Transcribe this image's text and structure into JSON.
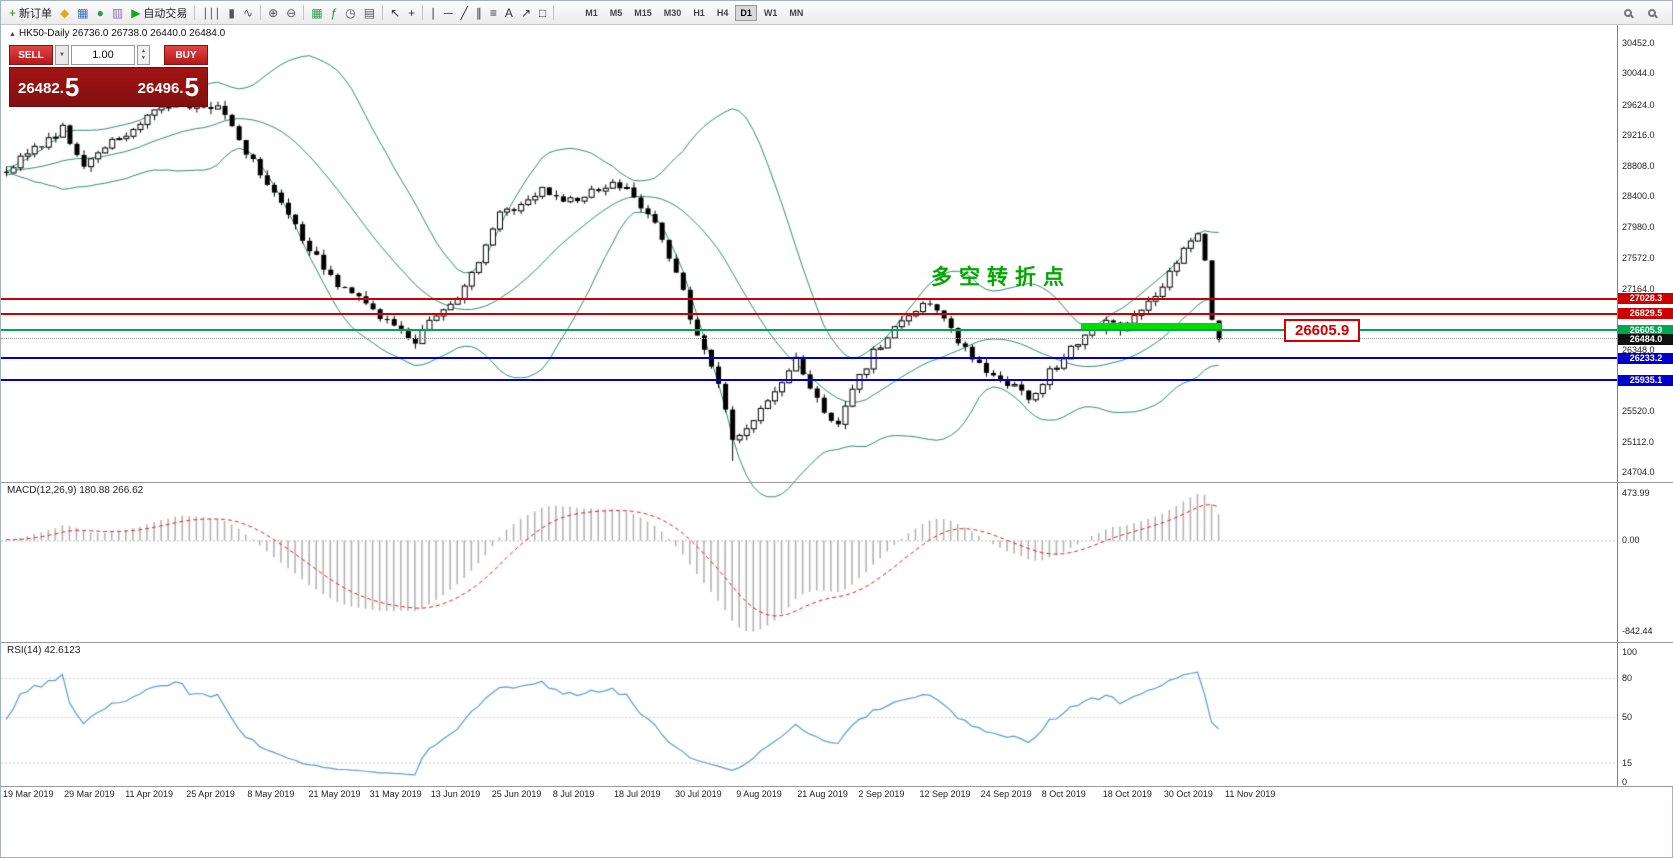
{
  "colors": {
    "bollinger": "#2e8b74",
    "macd_signal": "#dd2222",
    "macd_histogram": "#b4b4b4",
    "rsi_line": "#5b9bd5",
    "annotation_green": "#00a800",
    "callout_red": "#d40000",
    "highlight_green": "#00dd00",
    "level_red": "#cc0000",
    "level_green": "#00a651",
    "level_blue": "#0000cc"
  },
  "toolbar": {
    "items": [
      {
        "name": "new-order-button",
        "icon": "+",
        "icon_color": "#1a9c1a",
        "label": "新订单"
      },
      {
        "name": "market-watch-button",
        "icon": "◆",
        "icon_color": "#e6a817"
      },
      {
        "name": "data-window-button",
        "icon": "▦",
        "icon_color": "#3a6fc4"
      },
      {
        "name": "navigator-button",
        "icon": "●",
        "icon_color": "#2e9c4f"
      },
      {
        "name": "terminal-button",
        "icon": "▥",
        "icon_color": "#8a6fc0"
      },
      {
        "name": "auto-trading-button",
        "icon": "▶",
        "icon_color": "#18a818",
        "label": "自动交易"
      },
      {
        "sep": true
      },
      {
        "name": "bar-chart-button",
        "icon": "∣∣∣",
        "icon_color": "#555555"
      },
      {
        "name": "candlestick-chart-button",
        "icon": "▮",
        "icon_color": "#555555"
      },
      {
        "name": "line-chart-button",
        "icon": "∿",
        "icon_color": "#555555"
      },
      {
        "sep": true
      },
      {
        "name": "zoom-in-button",
        "icon": "⊕",
        "icon_color": "#555555"
      },
      {
        "name": "zoom-out-button",
        "icon": "⊖",
        "icon_color": "#555555"
      },
      {
        "sep": true
      },
      {
        "name": "tile-windows-button",
        "icon": "▦",
        "icon_color": "#2e9c4f"
      },
      {
        "name": "indicators-button",
        "icon": "ƒ",
        "icon_color": "#1a9c1a"
      },
      {
        "name": "periods-button",
        "icon": "◷",
        "icon_color": "#555555"
      },
      {
        "name": "templates-button",
        "icon": "▤",
        "icon_color": "#555555"
      },
      {
        "sep": true
      },
      {
        "name": "cursor-button",
        "icon": "↖",
        "icon_color": "#333333"
      },
      {
        "name": "crosshair-button",
        "icon": "+",
        "icon_color": "#333333"
      },
      {
        "sep": true
      },
      {
        "name": "vertical-line-button",
        "icon": "∣",
        "icon_color": "#333333"
      },
      {
        "name": "horizontal-line-button",
        "icon": "─",
        "icon_color": "#333333"
      },
      {
        "name": "trendline-button",
        "icon": "╱",
        "icon_color": "#333333"
      },
      {
        "name": "channel-button",
        "icon": "∥",
        "icon_color": "#333333"
      },
      {
        "name": "fibonacci-button",
        "icon": "≡",
        "icon_color": "#333333"
      },
      {
        "name": "text-button",
        "icon": "A",
        "icon_color": "#333333"
      },
      {
        "name": "arrow-button",
        "icon": "↗",
        "icon_color": "#333333"
      },
      {
        "name": "shapes-button",
        "icon": "□",
        "icon_color": "#333333"
      },
      {
        "sep": true
      }
    ],
    "right_items": [
      {
        "name": "search-button"
      },
      {
        "name": "help-search-button"
      }
    ],
    "timeframes": [
      "M1",
      "M5",
      "M15",
      "M30",
      "H1",
      "H4",
      "D1",
      "W1",
      "MN"
    ],
    "active_timeframe": "D1"
  },
  "chart": {
    "title_marker": "▲",
    "title": "HK50-Daily 26736.0 26738.0 26440.0 26484.0",
    "order_panel": {
      "sell_label": "SELL",
      "buy_label": "BUY",
      "volume": "1.00",
      "sell_price": "26482.5",
      "buy_price": "26496.5",
      "sell_main": "26482.",
      "sell_big": "5",
      "buy_main": "26496.",
      "buy_big": "5"
    },
    "annotation": "多空转折点",
    "callout_price": "26605.9",
    "axis_labels": [
      "30452.0",
      "30044.0",
      "29624.0",
      "29216.0",
      "28808.0",
      "28400.0",
      "27980.0",
      "27572.0",
      "27164.0",
      "26348.0",
      "25520.0",
      "25112.0",
      "24704.0"
    ],
    "price_tags": [
      {
        "text": "27028.3",
        "price": 27028.3,
        "color": "#cc0000"
      },
      {
        "text": "26829.5",
        "price": 26829.5,
        "color": "#cc0000"
      },
      {
        "text": "26605.9",
        "price": 26605.9,
        "color": "#00a651"
      },
      {
        "text": "26484.0",
        "price": 26484.0,
        "color": "#111111"
      },
      {
        "text": "26233.2",
        "price": 26233.2,
        "color": "#0000cc"
      },
      {
        "text": "25935.1",
        "price": 25935.1,
        "color": "#0000cc"
      }
    ],
    "levels": [
      {
        "name": "resistance-line-27028",
        "price": 27028.3,
        "color": "#cc0000",
        "style": "solid"
      },
      {
        "name": "resistance-line-26829",
        "price": 26829.5,
        "color": "#cc0000",
        "style": "solid"
      },
      {
        "name": "support-line-26605",
        "price": 26605.9,
        "color": "#00a651",
        "style": "solid"
      },
      {
        "name": "current-price-line",
        "price": 26484.0,
        "color": "#999999",
        "style": "dotted"
      },
      {
        "name": "support-line-26233",
        "price": 26233.2,
        "color": "#0000cc",
        "style": "solid"
      },
      {
        "name": "support-line-25935",
        "price": 25935.1,
        "color": "#0000cc",
        "style": "solid"
      }
    ],
    "highlight": {
      "from_index": 152.5,
      "to_index": 172.3,
      "price": 26605.9
    }
  },
  "macd": {
    "label": "MACD(12,26,9) 180.88 266.62",
    "axis": [
      "473.99",
      "0.00",
      "-842.44"
    ]
  },
  "rsi": {
    "label": "RSI(14) 42.6123",
    "axis": [
      "100",
      "80",
      "50",
      "15",
      "0"
    ],
    "levels": [
      80,
      50,
      15
    ]
  },
  "dates": [
    "19 Mar 2019",
    "29 Mar 2019",
    "11 Apr 2019",
    "25 Apr 2019",
    "8 May 2019",
    "21 May 2019",
    "31 May 2019",
    "13 Jun 2019",
    "25 Jun 2019",
    "8 Jul 2019",
    "18 Jul 2019",
    "30 Jul 2019",
    "9 Aug 2019",
    "21 Aug 2019",
    "2 Sep 2019",
    "12 Sep 2019",
    "24 Sep 2019",
    "8 Oct 2019",
    "18 Oct 2019",
    "30 Oct 2019",
    "11 Nov 2019"
  ],
  "chart_data": {
    "type": "candlestick",
    "symbol": "HK50",
    "timeframe": "Daily",
    "last_candle": {
      "open": 26736.0,
      "high": 26738.0,
      "low": 26440.0,
      "close": 26484.0
    },
    "current_price": 26484.0,
    "candles": 173,
    "y_axis_ticks": [
      30452,
      30044,
      29624,
      29216,
      28808,
      28400,
      27980,
      27572,
      27164,
      26348,
      25520,
      25112,
      24704
    ],
    "horizontal_levels": [
      27028.3,
      26829.5,
      26605.9,
      26233.2,
      25935.1
    ],
    "indicators": {
      "bollinger_bands": {
        "period": 20,
        "deviation": 2
      },
      "macd": {
        "fast": 12,
        "slow": 26,
        "signal": 9,
        "current_values": [
          180.88,
          266.62
        ]
      },
      "rsi": {
        "period": 14,
        "current_value": 42.6123
      }
    },
    "price_anchors": [
      [
        0,
        28750
      ],
      [
        3,
        28950
      ],
      [
        6,
        29150
      ],
      [
        8,
        29300
      ],
      [
        11,
        28800
      ],
      [
        14,
        29050
      ],
      [
        17,
        29250
      ],
      [
        20,
        29450
      ],
      [
        24,
        29700
      ],
      [
        27,
        29550
      ],
      [
        30,
        29650
      ],
      [
        33,
        29150
      ],
      [
        36,
        28700
      ],
      [
        39,
        28300
      ],
      [
        42,
        27850
      ],
      [
        46,
        27300
      ],
      [
        50,
        27050
      ],
      [
        55,
        26650
      ],
      [
        58,
        26480
      ],
      [
        61,
        26800
      ],
      [
        64,
        27000
      ],
      [
        67,
        27550
      ],
      [
        70,
        28150
      ],
      [
        73,
        28300
      ],
      [
        76,
        28500
      ],
      [
        79,
        28350
      ],
      [
        82,
        28400
      ],
      [
        86,
        28600
      ],
      [
        89,
        28400
      ],
      [
        92,
        28050
      ],
      [
        94,
        27550
      ],
      [
        96,
        27100
      ],
      [
        98,
        26500
      ],
      [
        100,
        26100
      ],
      [
        102,
        25600
      ],
      [
        103,
        25150
      ],
      [
        105,
        25300
      ],
      [
        107,
        25550
      ],
      [
        110,
        25950
      ],
      [
        112,
        26200
      ],
      [
        114,
        25850
      ],
      [
        116,
        25450
      ],
      [
        118,
        25350
      ],
      [
        120,
        25800
      ],
      [
        123,
        26300
      ],
      [
        126,
        26650
      ],
      [
        129,
        26900
      ],
      [
        131,
        27000
      ],
      [
        134,
        26600
      ],
      [
        137,
        26250
      ],
      [
        140,
        26000
      ],
      [
        143,
        25850
      ],
      [
        145,
        25680
      ],
      [
        148,
        26050
      ],
      [
        151,
        26350
      ],
      [
        153,
        26550
      ],
      [
        156,
        26700
      ],
      [
        158,
        26620
      ],
      [
        161,
        26850
      ],
      [
        164,
        27200
      ],
      [
        167,
        27700
      ],
      [
        169,
        27870
      ],
      [
        170,
        27550
      ],
      [
        171,
        26740
      ],
      [
        172,
        26484
      ]
    ]
  }
}
